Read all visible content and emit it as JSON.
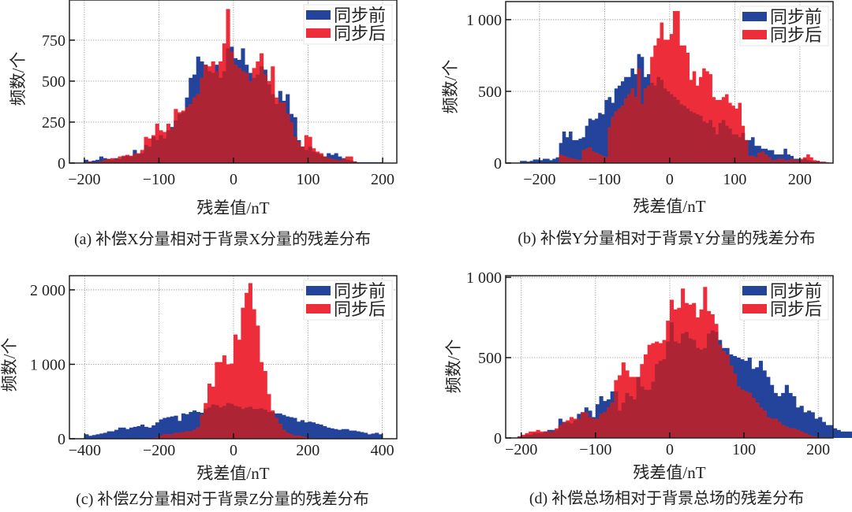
{
  "colors": {
    "before": "#24439b",
    "after": "#ee2d3a",
    "overlap": "#ad2535"
  },
  "chart_data": [
    {
      "type": "bar",
      "title": "(a) 补偿X分量相对于背景X分量的残差分布",
      "xlabel": "残差值/nT",
      "ylabel": "频数/个",
      "xlim": [
        -220,
        219
      ],
      "ylim": [
        0,
        995
      ],
      "xticks": [
        -200,
        -100,
        0,
        100,
        200
      ],
      "xtick_labels": [
        "−200",
        "−100",
        "0",
        "100",
        "200"
      ],
      "yticks": [
        0,
        250,
        500,
        750
      ],
      "ytick_labels": [
        "0",
        "250",
        "500",
        "750"
      ],
      "grid": true,
      "legend": "top-right",
      "bin_width": 5,
      "series": [
        {
          "name": "同步前",
          "start": -200,
          "values": [
            20,
            10,
            15,
            20,
            40,
            30,
            25,
            20,
            30,
            25,
            40,
            45,
            40,
            80,
            55,
            60,
            110,
            100,
            160,
            140,
            170,
            150,
            200,
            220,
            260,
            300,
            310,
            400,
            520,
            540,
            650,
            620,
            600,
            560,
            550,
            600,
            520,
            560,
            700,
            710,
            640,
            630,
            700,
            600,
            550,
            520,
            540,
            590,
            570,
            480,
            420,
            360,
            440,
            380,
            420,
            300,
            280,
            140,
            100,
            80,
            100,
            70,
            60,
            50,
            40,
            60,
            50,
            60,
            40,
            30,
            20,
            15,
            10,
            5,
            5,
            5,
            5,
            5,
            5,
            5
          ]
        },
        {
          "name": "同步后",
          "start": -200,
          "values": [
            5,
            10,
            5,
            5,
            10,
            20,
            25,
            30,
            25,
            40,
            45,
            50,
            45,
            55,
            60,
            80,
            160,
            150,
            170,
            240,
            200,
            190,
            240,
            210,
            330,
            310,
            320,
            340,
            360,
            400,
            420,
            520,
            600,
            590,
            620,
            560,
            620,
            730,
            940,
            680,
            600,
            580,
            560,
            550,
            500,
            580,
            620,
            670,
            540,
            500,
            590,
            400,
            370,
            370,
            300,
            250,
            160,
            130,
            100,
            170,
            160,
            90,
            70,
            60,
            40,
            30,
            25,
            20,
            15,
            25,
            40,
            40,
            10
          ]
        }
      ]
    },
    {
      "type": "bar",
      "title": "(b) 补偿Y分量相对于背景Y分量的残差分布",
      "xlabel": "残差值/nT",
      "ylabel": "频数/个",
      "xlim": [
        -252,
        251
      ],
      "ylim": [
        0,
        1126
      ],
      "xticks": [
        -200,
        -100,
        0,
        100,
        200
      ],
      "xtick_labels": [
        "−200",
        "−100",
        "0",
        "100",
        "200"
      ],
      "yticks": [
        0,
        500,
        1000
      ],
      "ytick_labels": [
        "0",
        "500",
        "1 000"
      ],
      "grid": true,
      "legend": "top-right",
      "bin_width": 5,
      "series": [
        {
          "name": "同步前",
          "start": -230,
          "values": [
            15,
            15,
            10,
            15,
            25,
            25,
            20,
            30,
            30,
            20,
            30,
            40,
            140,
            220,
            180,
            220,
            160,
            160,
            170,
            180,
            260,
            310,
            300,
            310,
            350,
            340,
            440,
            460,
            420,
            520,
            540,
            570,
            600,
            600,
            660,
            620,
            760,
            740,
            600,
            620,
            560,
            540,
            600,
            580,
            520,
            500,
            480,
            460,
            440,
            410,
            400,
            380,
            360,
            350,
            340,
            330,
            290,
            280,
            300,
            250,
            200,
            280,
            300,
            260,
            240,
            200,
            200,
            180,
            210,
            160,
            160,
            180,
            120,
            120,
            100,
            100,
            90,
            90,
            60,
            60,
            60,
            100,
            60,
            50,
            30,
            30,
            20,
            30,
            20,
            15,
            10,
            15
          ]
        },
        {
          "name": "同步后",
          "start": -170,
          "values": [
            60,
            50,
            40,
            35,
            30,
            25,
            20,
            90,
            100,
            110,
            80,
            70,
            60,
            50,
            40,
            250,
            320,
            360,
            380,
            400,
            450,
            480,
            520,
            460,
            660,
            410,
            520,
            540,
            740,
            820,
            870,
            980,
            860,
            860,
            900,
            1060,
            1060,
            820,
            820,
            770,
            580,
            640,
            540,
            600,
            660,
            640,
            620,
            460,
            440,
            440,
            460,
            480,
            420,
            400,
            380,
            420,
            260,
            160,
            50,
            50,
            40,
            70,
            80,
            60,
            40,
            20,
            20,
            30,
            30,
            20,
            20,
            30,
            20,
            20,
            30,
            40,
            60,
            40,
            20,
            15,
            10,
            10,
            5
          ]
        }
      ]
    },
    {
      "type": "bar",
      "title": "(c) 补偿Z分量相对于背景Z分量的残差分布",
      "xlabel": "残差值/nT",
      "ylabel": "频数/个",
      "xlim": [
        -441,
        439
      ],
      "ylim": [
        0,
        2190
      ],
      "xticks": [
        -400,
        -200,
        0,
        200,
        400
      ],
      "xtick_labels": [
        "−400",
        "−200",
        "0",
        "200",
        "400"
      ],
      "yticks": [
        0,
        1000,
        2000
      ],
      "ytick_labels": [
        "0",
        "1 000",
        "2 000"
      ],
      "grid": true,
      "legend": "top-right",
      "bin_width": 10,
      "series": [
        {
          "name": "同步前",
          "start": -400,
          "values": [
            60,
            40,
            50,
            60,
            70,
            80,
            100,
            100,
            120,
            150,
            150,
            130,
            150,
            160,
            170,
            190,
            160,
            150,
            180,
            220,
            260,
            280,
            290,
            300,
            310,
            240,
            340,
            330,
            360,
            380,
            360,
            350,
            400,
            420,
            460,
            450,
            420,
            440,
            480,
            470,
            440,
            430,
            400,
            420,
            430,
            400,
            400,
            410,
            390,
            360,
            360,
            340,
            340,
            320,
            300,
            290,
            280,
            230,
            250,
            220,
            230,
            220,
            200,
            190,
            170,
            150,
            140,
            130,
            120,
            130,
            130,
            110,
            110,
            100,
            90,
            80,
            60,
            70,
            80,
            60
          ]
        },
        {
          "name": "同步后",
          "start": -230,
          "values": [
            10,
            10,
            20,
            40,
            60,
            60,
            60,
            80,
            80,
            90,
            100,
            100,
            120,
            150,
            320,
            480,
            740,
            700,
            1030,
            1030,
            1120,
            1000,
            1010,
            1400,
            1330,
            1760,
            1960,
            2090,
            1740,
            1520,
            1030,
            910,
            600,
            380,
            280,
            200,
            120,
            80,
            60,
            40,
            40,
            30,
            20,
            10,
            10,
            5,
            5
          ]
        }
      ]
    },
    {
      "type": "bar",
      "title": "(d) 补偿总场相对于背景总场的残差分布",
      "xlabel": "残差值/nT",
      "ylabel": "频数/个",
      "xlim": [
        -221,
        220
      ],
      "ylim": [
        0,
        1010
      ],
      "xticks": [
        -200,
        -100,
        0,
        100,
        200
      ],
      "xtick_labels": [
        "−200",
        "−100",
        "0",
        "100",
        "200"
      ],
      "yticks": [
        0,
        500,
        1000
      ],
      "ytick_labels": [
        "0",
        "500",
        "1 000"
      ],
      "grid": true,
      "legend": "top-right",
      "bin_width": 5,
      "series": [
        {
          "name": "同步前",
          "start": -205,
          "values": [
            10,
            10,
            20,
            20,
            30,
            30,
            30,
            40,
            50,
            50,
            50,
            120,
            100,
            100,
            90,
            110,
            150,
            160,
            190,
            170,
            130,
            210,
            260,
            230,
            240,
            290,
            290,
            170,
            220,
            280,
            260,
            240,
            380,
            320,
            300,
            300,
            350,
            460,
            480,
            490,
            600,
            720,
            600,
            590,
            650,
            660,
            620,
            610,
            560,
            550,
            560,
            650,
            670,
            660,
            610,
            560,
            560,
            520,
            510,
            500,
            490,
            480,
            500,
            430,
            440,
            480,
            420,
            380,
            330,
            280,
            260,
            280,
            330,
            280,
            260,
            190,
            200,
            160,
            170,
            160,
            120,
            130,
            100,
            80,
            80,
            60,
            50,
            40,
            40,
            40,
            30,
            30,
            20,
            30,
            20,
            20,
            30,
            30
          ]
        },
        {
          "name": "同步后",
          "start": -205,
          "values": [
            10,
            20,
            30,
            40,
            40,
            50,
            40,
            40,
            40,
            40,
            60,
            80,
            100,
            110,
            130,
            120,
            120,
            160,
            160,
            130,
            120,
            120,
            150,
            160,
            190,
            220,
            360,
            390,
            470,
            420,
            380,
            380,
            380,
            460,
            520,
            580,
            590,
            600,
            590,
            610,
            730,
            860,
            800,
            810,
            930,
            840,
            830,
            840,
            750,
            800,
            940,
            790,
            770,
            710,
            580,
            540,
            520,
            450,
            400,
            320,
            300,
            290,
            280,
            250,
            220,
            190,
            170,
            130,
            120,
            120,
            100,
            80,
            70,
            60,
            60,
            50,
            40,
            30,
            20,
            10,
            10,
            5,
            5
          ]
        }
      ]
    }
  ]
}
